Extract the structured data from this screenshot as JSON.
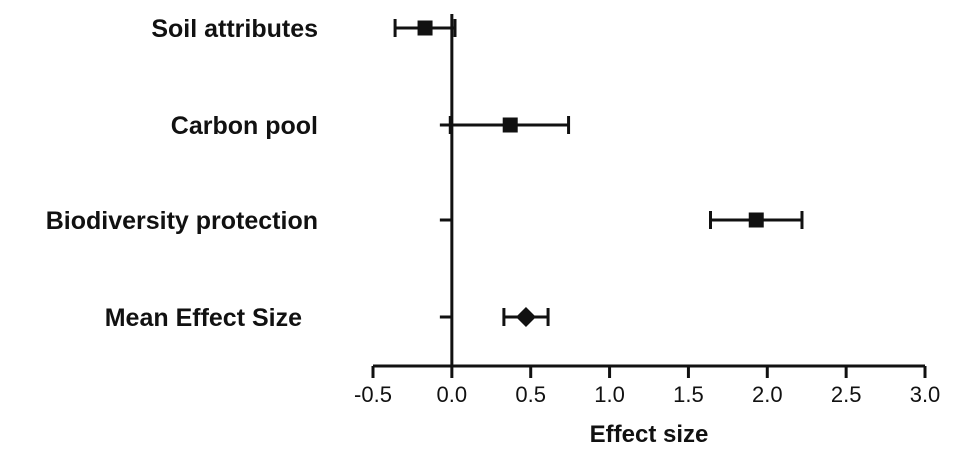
{
  "chart_data": {
    "type": "forest",
    "xlabel": "Effect size",
    "xlim": [
      -0.5,
      3.0
    ],
    "xticks": [
      "-0.5",
      "0.0",
      "0.5",
      "1.0",
      "1.5",
      "2.0",
      "2.5",
      "3.0"
    ],
    "zero_line": 0.0,
    "grid": false,
    "legend": "none",
    "rows": [
      {
        "label": "Soil attributes",
        "estimate": -0.17,
        "lower": -0.36,
        "upper": 0.02,
        "marker": "square"
      },
      {
        "label": "Carbon pool",
        "estimate": 0.37,
        "lower": -0.01,
        "upper": 0.74,
        "marker": "square"
      },
      {
        "label": "Biodiversity protection",
        "estimate": 1.93,
        "lower": 1.64,
        "upper": 2.22,
        "marker": "square"
      },
      {
        "label": "Mean Effect Size",
        "estimate": 0.47,
        "lower": 0.33,
        "upper": 0.61,
        "marker": "diamond"
      }
    ],
    "colors": {
      "ink": "#111111"
    }
  }
}
